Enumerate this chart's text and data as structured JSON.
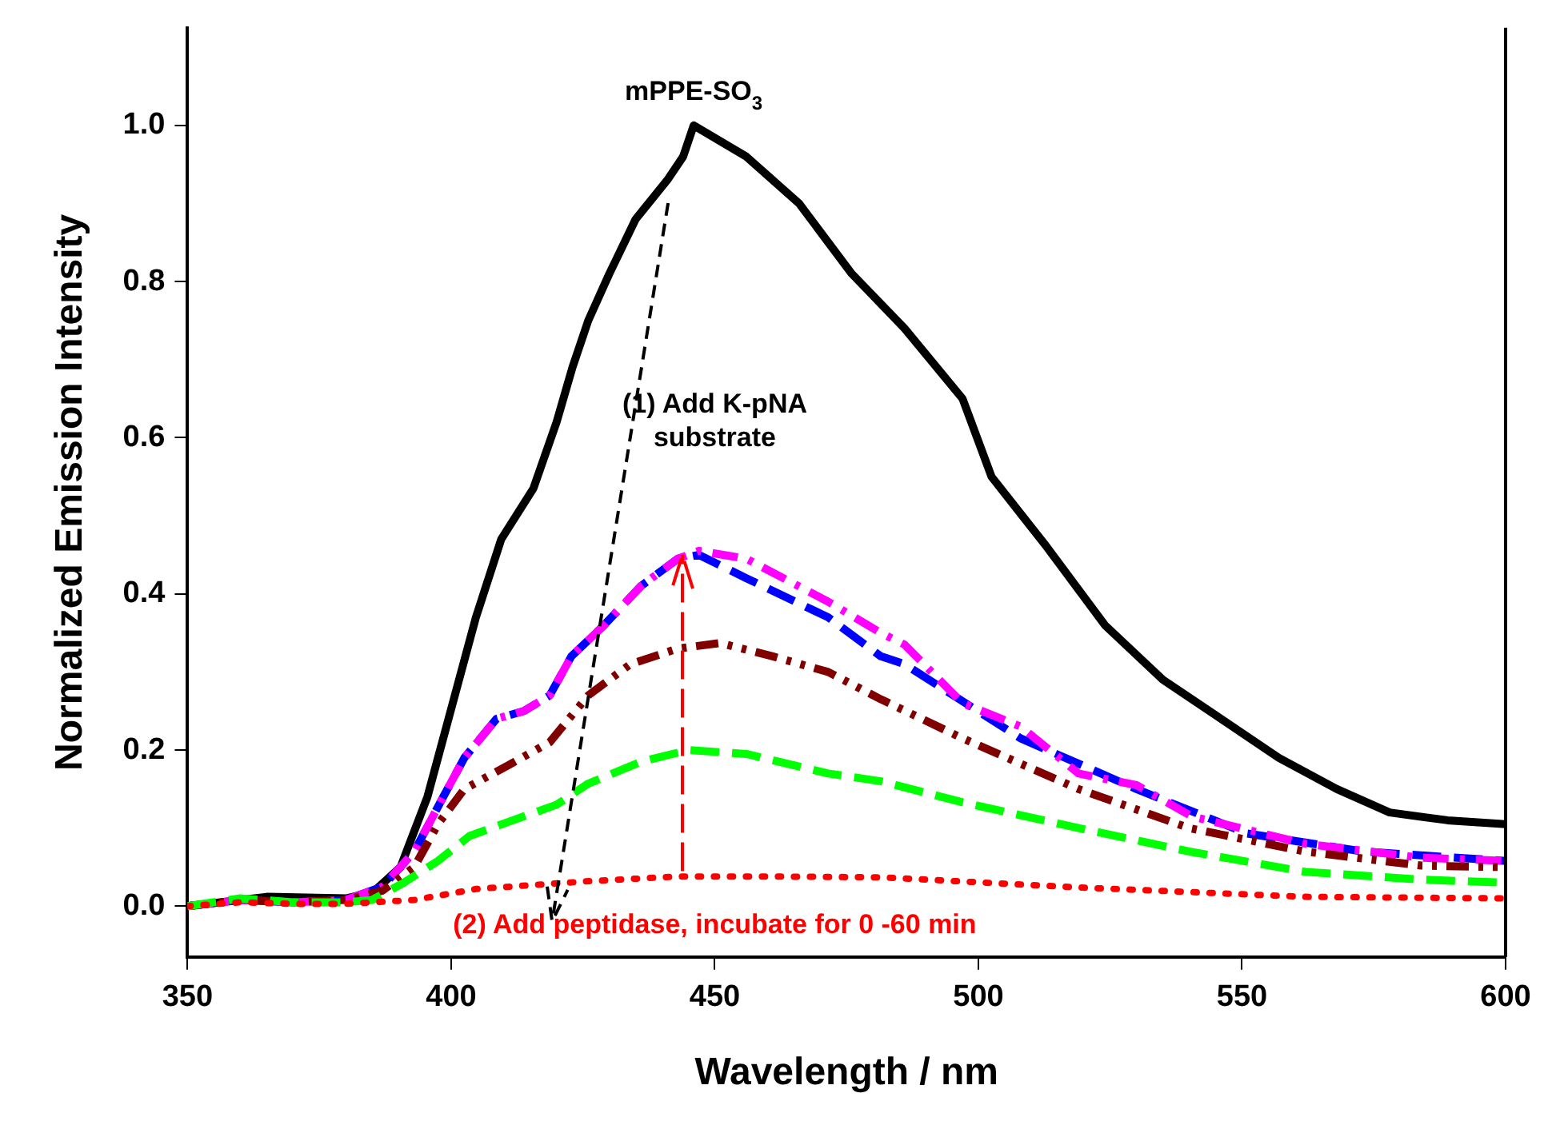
{
  "chart_data": {
    "type": "line",
    "xlabel": "Wavelength / nm",
    "ylabel": "Normalized Emission Intensity",
    "xlim": [
      350,
      600
    ],
    "xticks": [
      350,
      400,
      450,
      500,
      550,
      600
    ],
    "ylim": [
      -0.065,
      1.125
    ],
    "yticks": [
      {
        "value": 0,
        "label": "0.0"
      },
      {
        "value": 0.2,
        "label": "0.2"
      },
      {
        "value": 0.4,
        "label": "0.4"
      },
      {
        "value": 0.6,
        "label": "0.6"
      },
      {
        "value": 0.8,
        "label": "0.8"
      },
      {
        "value": 1,
        "label": "1.0"
      }
    ],
    "grid": false,
    "legend": false,
    "marker": "none",
    "annotations": [
      "(1) Add K-pNA\nsubstrate",
      "(2) Add peptidase, incubate for 0 -60 min"
    ],
    "series": [
      {
        "name": "mPPE-SO$_{3}$",
        "color": "#000000",
        "line_style": "solid",
        "x": [
          350,
          365,
          380,
          385.2,
          390.4,
          395.5,
          399.5,
          404.7,
          409.5,
          415.6,
          420,
          423,
          426,
          430,
          435,
          441,
          444,
          446,
          456,
          466,
          476,
          486,
          497,
          502.5,
          513,
          524,
          535,
          546,
          557,
          568,
          578,
          589,
          600
        ],
        "values": [
          0,
          0.012,
          0.01,
          0.018,
          0.05,
          0.14,
          0.24,
          0.37,
          0.47,
          0.535,
          0.62,
          0.69,
          0.75,
          0.81,
          0.88,
          0.93,
          0.96,
          1.0,
          0.96,
          0.9,
          0.81,
          0.74,
          0.65,
          0.55,
          0.46,
          0.36,
          0.29,
          0.24,
          0.19,
          0.15,
          0.12,
          0.11,
          0.105
        ]
      },
      {
        "color": "#0000ff",
        "line_style": "dashed",
        "x": [
          350,
          360,
          370,
          380,
          387,
          393,
          398.5,
          402.5,
          408.6,
          413.8,
          418.7,
          422.8,
          429,
          436,
          443,
          447,
          456,
          471.5,
          481.5,
          486,
          508,
          530,
          551,
          573,
          600
        ],
        "values": [
          0,
          0.008,
          0.005,
          0.008,
          0.025,
          0.07,
          0.14,
          0.19,
          0.24,
          0.25,
          0.27,
          0.32,
          0.36,
          0.41,
          0.445,
          0.45,
          0.42,
          0.37,
          0.32,
          0.31,
          0.215,
          0.15,
          0.093,
          0.07,
          0.058
        ]
      },
      {
        "color": "#ff00ff",
        "line_style": "dashdot",
        "x": [
          350,
          360,
          370,
          380,
          387,
          393,
          398.5,
          402.5,
          408.6,
          413.8,
          418.7,
          422.8,
          429,
          436,
          443,
          447,
          456,
          471.5,
          481.5,
          486,
          497,
          508,
          519,
          530,
          540.5,
          562,
          584,
          600
        ],
        "values": [
          0,
          0.008,
          0.005,
          0.008,
          0.025,
          0.07,
          0.14,
          0.19,
          0.24,
          0.25,
          0.27,
          0.32,
          0.36,
          0.41,
          0.445,
          0.455,
          0.445,
          0.39,
          0.35,
          0.335,
          0.26,
          0.23,
          0.17,
          0.155,
          0.115,
          0.08,
          0.062,
          0.058
        ]
      },
      {
        "color": "#800000",
        "line_style": "dashdotdot",
        "x": [
          350,
          360,
          370,
          380,
          387,
          393,
          397.5,
          402.5,
          410.7,
          418.7,
          426,
          434,
          443,
          451,
          461,
          471.5,
          481.5,
          497,
          519,
          540,
          562,
          584,
          600
        ],
        "values": [
          0,
          0.008,
          0.005,
          0.008,
          0.02,
          0.05,
          0.105,
          0.15,
          0.18,
          0.21,
          0.27,
          0.31,
          0.33,
          0.337,
          0.32,
          0.3,
          0.265,
          0.215,
          0.15,
          0.1,
          0.07,
          0.052,
          0.05
        ]
      },
      {
        "color": "#00ff00",
        "line_style": "dashed",
        "x": [
          350,
          360,
          370,
          380,
          385,
          391,
          397.5,
          403.5,
          411.7,
          420,
          426,
          436,
          445,
          456,
          471.5,
          481.5,
          497,
          519,
          540,
          562,
          584,
          600
        ],
        "values": [
          0,
          0.01,
          0.005,
          0.005,
          0.008,
          0.03,
          0.058,
          0.09,
          0.11,
          0.13,
          0.157,
          0.185,
          0.2,
          0.195,
          0.17,
          0.16,
          0.133,
          0.1,
          0.07,
          0.044,
          0.034,
          0.03
        ]
      },
      {
        "color": "#ff0000",
        "line_style": "dotted",
        "x": [
          350,
          360,
          370,
          380,
          393,
          404.7,
          426,
          443,
          461,
          481.5,
          519,
          562,
          600
        ],
        "values": [
          0,
          0.005,
          0.003,
          0.003,
          0.008,
          0.022,
          0.032,
          0.038,
          0.038,
          0.037,
          0.024,
          0.012,
          0.01
        ]
      }
    ]
  }
}
